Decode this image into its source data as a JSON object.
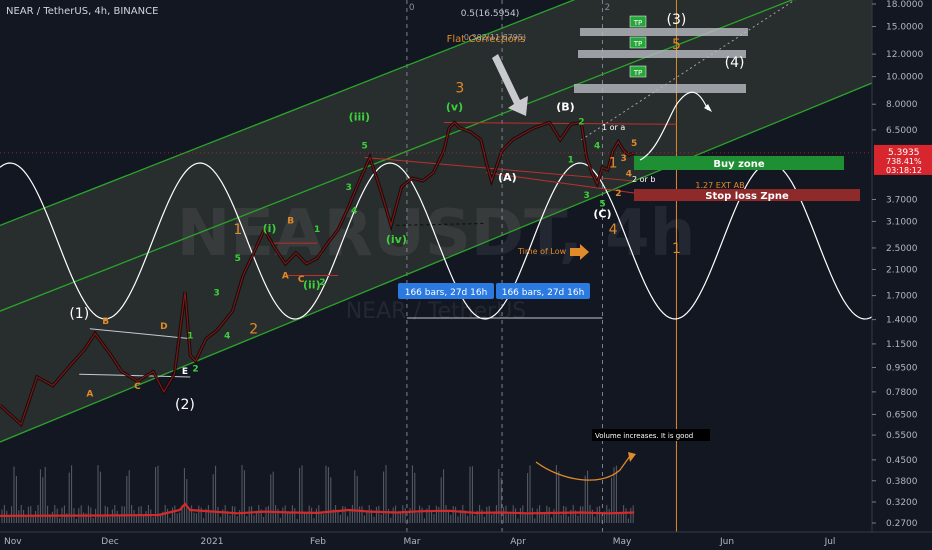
{
  "header": {
    "title": "NEAR / TetherUS, 4h, BINANCE"
  },
  "watermark": {
    "symbol": "NEARUSDT, 4h",
    "subtitle": "NEAR / TetherUS"
  },
  "colors": {
    "background": "#131722",
    "channel": "#2aa52a",
    "wave": "#ffffff",
    "orange": "#e08a2a",
    "green_label": "#3bd13b",
    "red_line": "#c0302a",
    "buy_zone": "#1e8f32",
    "stop_zone": "#8e2a2a",
    "price_tag": "#d8262e",
    "tp_fill": "#27a63c",
    "measure": "#2a7ae2"
  },
  "chart_data": {
    "type": "line",
    "scale": "log",
    "ylim": [
      0.27,
      18
    ],
    "yticks": [
      {
        "value": 18,
        "label": "18.0000"
      },
      {
        "value": 15,
        "label": "15.0000"
      },
      {
        "value": 12,
        "label": "12.0000"
      },
      {
        "value": 10,
        "label": "10.0000"
      },
      {
        "value": 8,
        "label": "8.0000"
      },
      {
        "value": 6.5,
        "label": "6.5000"
      },
      {
        "value": 3.7,
        "label": "3.7000"
      },
      {
        "value": 3.1,
        "label": "3.1000"
      },
      {
        "value": 2.5,
        "label": "2.5000"
      },
      {
        "value": 2.1,
        "label": "2.1000"
      },
      {
        "value": 1.7,
        "label": "1.7000"
      },
      {
        "value": 1.4,
        "label": "1.4000"
      },
      {
        "value": 1.15,
        "label": "1.1500"
      },
      {
        "value": 0.95,
        "label": "0.9500"
      },
      {
        "value": 0.78,
        "label": "0.7800"
      },
      {
        "value": 0.65,
        "label": "0.6500"
      },
      {
        "value": 0.55,
        "label": "0.5500"
      },
      {
        "value": 0.45,
        "label": "0.4500"
      },
      {
        "value": 0.38,
        "label": "0.3800"
      },
      {
        "value": 0.32,
        "label": "0.3200"
      },
      {
        "value": 0.27,
        "label": "0.2700"
      }
    ],
    "xticks": [
      "Nov",
      "Dec",
      "2021",
      "Feb",
      "Mar",
      "Apr",
      "May",
      "Jun",
      "Jul"
    ],
    "price_tag": {
      "value": 5.3935,
      "label": "5.3935",
      "change": "738.41%",
      "countdown": "03:18:12"
    },
    "price_path": [
      [
        0,
        0.7
      ],
      [
        4,
        0.6
      ],
      [
        7,
        0.88
      ],
      [
        10,
        0.82
      ],
      [
        14,
        1.0
      ],
      [
        16,
        1.1
      ],
      [
        18,
        1.25
      ],
      [
        21,
        1.05
      ],
      [
        23,
        0.92
      ],
      [
        26,
        0.85
      ],
      [
        29,
        0.92
      ],
      [
        31,
        0.78
      ],
      [
        33,
        0.9
      ],
      [
        35,
        1.75
      ],
      [
        36,
        1.05
      ],
      [
        37,
        1.0
      ],
      [
        39,
        1.2
      ],
      [
        41,
        1.28
      ],
      [
        44,
        1.5
      ],
      [
        46,
        2.0
      ],
      [
        48,
        2.4
      ],
      [
        50,
        2.9
      ],
      [
        52,
        2.5
      ],
      [
        54,
        2.2
      ],
      [
        56,
        2.4
      ],
      [
        58,
        2.2
      ],
      [
        60,
        2.3
      ],
      [
        62,
        2.6
      ],
      [
        64,
        2.9
      ],
      [
        66,
        3.5
      ],
      [
        68,
        4.3
      ],
      [
        70,
        5.2
      ],
      [
        72,
        4.0
      ],
      [
        74,
        3.0
      ],
      [
        76,
        4.1
      ],
      [
        78,
        4.4
      ],
      [
        80,
        4.3
      ],
      [
        82,
        4.6
      ],
      [
        84,
        5.5
      ],
      [
        85,
        6.6
      ],
      [
        86,
        6.9
      ],
      [
        87,
        6.6
      ],
      [
        89,
        6.4
      ],
      [
        91,
        6.0
      ],
      [
        92,
        5.0
      ],
      [
        93,
        4.3
      ],
      [
        95,
        5.5
      ],
      [
        97,
        6.0
      ],
      [
        99,
        6.3
      ],
      [
        101,
        6.6
      ],
      [
        103,
        6.8
      ],
      [
        104,
        6.9
      ],
      [
        106,
        6.0
      ],
      [
        108,
        6.8
      ],
      [
        110,
        6.9
      ],
      [
        111,
        5.2
      ],
      [
        112,
        4.6
      ],
      [
        113,
        4.2
      ],
      [
        114,
        4.8
      ],
      [
        115,
        4.7
      ],
      [
        116,
        5.5
      ],
      [
        117,
        5.9
      ],
      [
        118,
        5.5
      ],
      [
        119,
        5.3
      ],
      [
        120,
        5.39
      ]
    ],
    "volume_line": [
      [
        0,
        0.286
      ],
      [
        20,
        0.287
      ],
      [
        30,
        0.288
      ],
      [
        34,
        0.3
      ],
      [
        35,
        0.315
      ],
      [
        36,
        0.3
      ],
      [
        45,
        0.292
      ],
      [
        50,
        0.296
      ],
      [
        55,
        0.294
      ],
      [
        60,
        0.293
      ],
      [
        66,
        0.3
      ],
      [
        70,
        0.296
      ],
      [
        75,
        0.294
      ],
      [
        80,
        0.297
      ],
      [
        85,
        0.298
      ],
      [
        90,
        0.293
      ],
      [
        95,
        0.294
      ],
      [
        100,
        0.292
      ],
      [
        105,
        0.293
      ],
      [
        110,
        0.294
      ],
      [
        115,
        0.292
      ],
      [
        120,
        0.294
      ]
    ],
    "channel_lines": [
      {
        "start": [
          0,
          0.52
        ],
        "end": [
          165,
          9.5
        ]
      },
      {
        "start": [
          0,
          1.5
        ],
        "end": [
          165,
          24
        ]
      },
      {
        "start": [
          0,
          3.0
        ],
        "end": [
          165,
          48
        ]
      }
    ],
    "grey_levels": [
      12,
      8
    ],
    "grey_dotted_line": {
      "start": [
        110,
        6
      ],
      "end": [
        165,
        28
      ]
    },
    "vertical_markers": [
      {
        "x": 77,
        "label": "0"
      },
      {
        "x": 95,
        "label": ""
      },
      {
        "x": 114,
        "label": "2"
      }
    ],
    "annotations": {
      "fib_label": "0.5(16.5954)",
      "fib_label2": "0.382(11.6795)",
      "flat_corrections": "Flat Corrections",
      "buy_zone": "Buy zone",
      "stop_loss": "Stop loss Zpne",
      "ext_ab": "1.27 EXT AB",
      "time_of_low": "Time of Low",
      "volume_note": "Volume increases. It is good",
      "measure_1": "166 bars, 27d 16h",
      "measure_2": "166 bars, 27d 16h",
      "tp": "TP",
      "one_or_a": "1 or a",
      "two_or_b": "2 or b"
    },
    "wave_labels": [
      {
        "text": "(1)",
        "x": 15,
        "y": 1.42,
        "color": "white"
      },
      {
        "text": "(2)",
        "x": 35,
        "y": 0.68,
        "color": "white"
      },
      {
        "text": "(3)",
        "x": 128,
        "y": 15.3,
        "color": "white"
      },
      {
        "text": "(4)",
        "x": 139,
        "y": 10.8,
        "color": "white"
      },
      {
        "text": "1",
        "x": 45,
        "y": 2.8,
        "color": "orange"
      },
      {
        "text": "2",
        "x": 48,
        "y": 1.25,
        "color": "orange"
      },
      {
        "text": "3",
        "x": 87,
        "y": 8.8,
        "color": "orange"
      },
      {
        "text": "4",
        "x": 116,
        "y": 2.8,
        "color": "orange"
      },
      {
        "text": "5",
        "x": 128,
        "y": 12.5,
        "color": "orange"
      },
      {
        "text": "(i)",
        "x": 51,
        "y": 2.85,
        "color": "green"
      },
      {
        "text": "(ii)",
        "x": 59,
        "y": 1.8,
        "color": "green"
      },
      {
        "text": "(iii)",
        "x": 68,
        "y": 7.0,
        "color": "green"
      },
      {
        "text": "(iv)",
        "x": 75,
        "y": 2.6,
        "color": "green"
      },
      {
        "text": "(v)",
        "x": 86,
        "y": 7.6,
        "color": "green"
      },
      {
        "text": "(A)",
        "x": 96,
        "y": 4.3,
        "color": "white"
      },
      {
        "text": "(B)",
        "x": 107,
        "y": 7.6,
        "color": "white"
      },
      {
        "text": "(C)",
        "x": 114,
        "y": 3.2,
        "color": "white"
      },
      {
        "text": "A",
        "x": 17,
        "y": 0.75,
        "color": "orange"
      },
      {
        "text": "B",
        "x": 20,
        "y": 1.35,
        "color": "orange"
      },
      {
        "text": "C",
        "x": 26,
        "y": 0.8,
        "color": "orange"
      },
      {
        "text": "D",
        "x": 31,
        "y": 1.3,
        "color": "orange"
      },
      {
        "text": "E",
        "x": 35,
        "y": 0.9,
        "color": "white"
      },
      {
        "text": "A",
        "x": 54,
        "y": 1.95,
        "color": "orange"
      },
      {
        "text": "B",
        "x": 55,
        "y": 3.05,
        "color": "orange"
      },
      {
        "text": "C",
        "x": 57,
        "y": 1.9,
        "color": "orange"
      },
      {
        "text": "1",
        "x": 36,
        "y": 1.2,
        "color": "green"
      },
      {
        "text": "2",
        "x": 37,
        "y": 0.92,
        "color": "green"
      },
      {
        "text": "3",
        "x": 41,
        "y": 1.7,
        "color": "green"
      },
      {
        "text": "4",
        "x": 43,
        "y": 1.2,
        "color": "green"
      },
      {
        "text": "5",
        "x": 45,
        "y": 2.25,
        "color": "green"
      },
      {
        "text": "1",
        "x": 60,
        "y": 2.85,
        "color": "green"
      },
      {
        "text": "2",
        "x": 61,
        "y": 1.85,
        "color": "green"
      },
      {
        "text": "3",
        "x": 66,
        "y": 4.0,
        "color": "green"
      },
      {
        "text": "4",
        "x": 67,
        "y": 3.3,
        "color": "green"
      },
      {
        "text": "5",
        "x": 69,
        "y": 5.6,
        "color": "green"
      },
      {
        "text": "1",
        "x": 108,
        "y": 5.0,
        "color": "green"
      },
      {
        "text": "2",
        "x": 110,
        "y": 6.8,
        "color": "green"
      },
      {
        "text": "3",
        "x": 111,
        "y": 3.75,
        "color": "green"
      },
      {
        "text": "4",
        "x": 113,
        "y": 5.6,
        "color": "green"
      },
      {
        "text": "5",
        "x": 114,
        "y": 3.5,
        "color": "green"
      },
      {
        "text": "1",
        "x": 116,
        "y": 4.8,
        "color": "orange"
      },
      {
        "text": "2",
        "x": 117,
        "y": 3.8,
        "color": "orange"
      },
      {
        "text": "3",
        "x": 118,
        "y": 5.05,
        "color": "orange"
      },
      {
        "text": "4",
        "x": 119,
        "y": 4.45,
        "color": "orange"
      },
      {
        "text": "5",
        "x": 120,
        "y": 5.7,
        "color": "orange"
      },
      {
        "text": "1",
        "x": 128,
        "y": 2.4,
        "color": "orange"
      }
    ]
  }
}
